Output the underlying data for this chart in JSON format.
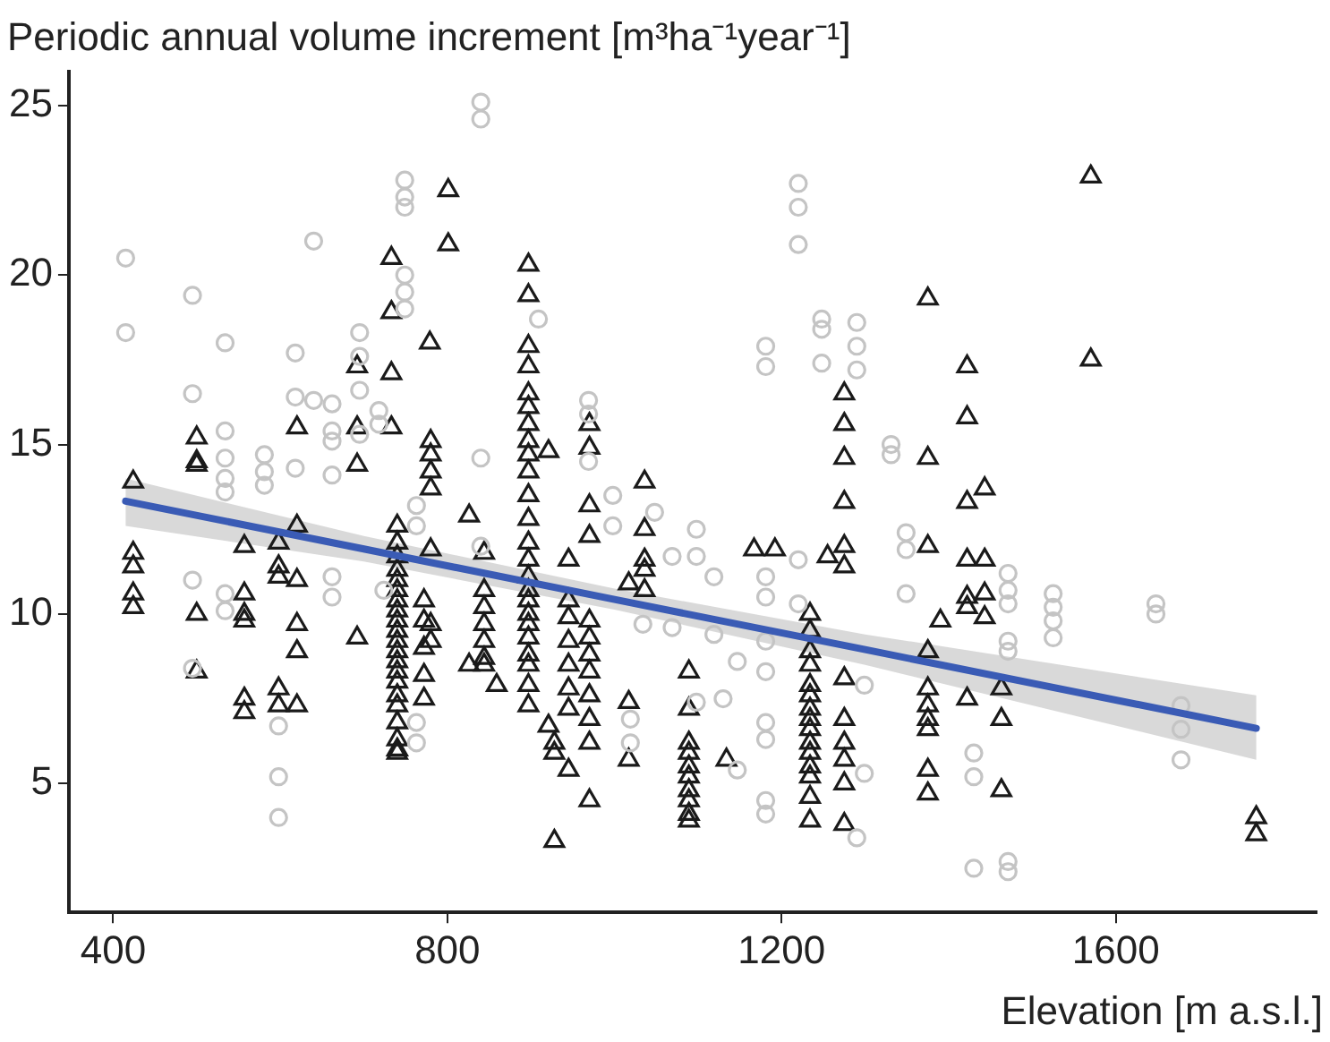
{
  "chart_data": {
    "type": "scatter",
    "ylabel": "Periodic annual volume increment [m³ha⁻¹year⁻¹]",
    "xlabel": "Elevation [m a.s.l.]",
    "xlim": [
      347,
      1840
    ],
    "xticks": [
      400,
      800,
      1200,
      1600
    ],
    "ylim": [
      1.2,
      26
    ],
    "yticks": [
      5,
      10,
      15,
      20,
      25
    ],
    "grid": false,
    "legend": false,
    "series": [
      {
        "color": "#c4c4c4",
        "marker": "circle",
        "x": [
          415,
          415,
          495,
          495,
          495,
          495,
          534,
          534,
          534,
          534,
          534,
          534,
          534,
          581,
          581,
          581,
          598,
          598,
          598,
          618,
          618,
          618,
          640,
          640,
          662,
          662,
          662,
          662,
          662,
          662,
          695,
          695,
          695,
          695,
          718,
          718,
          749,
          749,
          749,
          749,
          749,
          749,
          763,
          763,
          763,
          763,
          840,
          840,
          840,
          840,
          724,
          909,
          969,
          969,
          969,
          998,
          998,
          1048,
          1019,
          1019,
          1034,
          1069,
          1069,
          1098,
          1098,
          1098,
          1119,
          1119,
          1130,
          1147,
          1147,
          1181,
          1181,
          1181,
          1181,
          1181,
          1181,
          1181,
          1181,
          1181,
          1181,
          1220,
          1220,
          1220,
          1220,
          1220,
          1248,
          1248,
          1248,
          1290,
          1290,
          1290,
          1290,
          1299,
          1299,
          1331,
          1331,
          1349,
          1349,
          1349,
          1430,
          1430,
          1430,
          1471,
          1471,
          1471,
          1471,
          1471,
          1471,
          1471,
          1525,
          1525,
          1525,
          1525,
          1648,
          1648,
          1678,
          1678,
          1678
        ],
        "values": [
          20.5,
          18.3,
          16.5,
          19.4,
          11.0,
          8.4,
          18.0,
          15.4,
          14.6,
          14.0,
          13.6,
          10.6,
          10.1,
          14.7,
          14.2,
          13.8,
          6.7,
          5.2,
          4.0,
          17.7,
          16.4,
          14.3,
          21.0,
          16.3,
          16.2,
          15.4,
          15.1,
          14.1,
          11.1,
          10.5,
          18.3,
          17.6,
          16.6,
          15.3,
          16.0,
          15.6,
          22.8,
          22.3,
          22.0,
          20.0,
          19.5,
          19.0,
          13.2,
          12.6,
          6.8,
          6.2,
          25.1,
          24.6,
          14.6,
          12.0,
          10.7,
          18.7,
          16.3,
          15.9,
          14.5,
          13.5,
          12.6,
          13.0,
          6.9,
          6.2,
          9.7,
          11.7,
          9.6,
          12.5,
          11.7,
          7.4,
          11.1,
          9.4,
          7.5,
          8.6,
          5.4,
          17.9,
          17.3,
          11.1,
          10.5,
          9.2,
          8.3,
          6.8,
          6.3,
          4.5,
          4.1,
          22.7,
          22.0,
          20.9,
          11.6,
          10.3,
          18.7,
          18.4,
          17.4,
          18.6,
          17.9,
          17.2,
          3.4,
          7.9,
          5.3,
          15.0,
          14.7,
          12.4,
          11.9,
          10.6,
          5.9,
          5.2,
          2.5,
          11.2,
          10.7,
          10.3,
          9.2,
          8.9,
          2.7,
          2.4,
          10.6,
          10.2,
          9.8,
          9.3,
          10.3,
          10.0,
          7.3,
          6.6,
          5.7
        ]
      },
      {
        "color": "#1a1a1a",
        "marker": "triangle",
        "x": [
          424,
          424,
          424,
          424,
          424,
          500,
          500,
          500,
          500,
          500,
          557,
          557,
          557,
          557,
          557,
          557,
          598,
          598,
          598,
          598,
          598,
          620,
          620,
          620,
          620,
          620,
          620,
          692,
          692,
          692,
          692,
          733,
          733,
          733,
          733,
          740,
          740,
          740,
          740,
          740,
          740,
          740,
          740,
          740,
          740,
          740,
          740,
          740,
          740,
          740,
          740,
          740,
          740,
          740,
          740,
          740,
          772,
          772,
          772,
          772,
          772,
          780,
          780,
          780,
          780,
          780,
          780,
          780,
          801,
          801,
          779,
          826,
          826,
          844,
          844,
          844,
          844,
          844,
          844,
          844,
          859,
          897,
          897,
          897,
          897,
          897,
          897,
          897,
          897,
          897,
          897,
          897,
          897,
          897,
          897,
          897,
          897,
          897,
          897,
          897,
          897,
          897,
          897,
          897,
          897,
          921,
          921,
          928,
          928,
          928,
          945,
          945,
          945,
          945,
          945,
          945,
          945,
          945,
          970,
          970,
          970,
          970,
          970,
          970,
          970,
          970,
          970,
          970,
          970,
          970,
          1017,
          1017,
          1017,
          1036,
          1036,
          1036,
          1036,
          1036,
          1089,
          1089,
          1089,
          1089,
          1089,
          1089,
          1089,
          1089,
          1089,
          1089,
          1134,
          1167,
          1192,
          1234,
          1234,
          1234,
          1234,
          1234,
          1234,
          1234,
          1234,
          1234,
          1234,
          1234,
          1234,
          1234,
          1234,
          1234,
          1255,
          1275,
          1275,
          1275,
          1275,
          1275,
          1275,
          1275,
          1275,
          1275,
          1275,
          1275,
          1275,
          1375,
          1375,
          1375,
          1375,
          1375,
          1375,
          1375,
          1375,
          1375,
          1375,
          1390,
          1422,
          1422,
          1422,
          1422,
          1422,
          1422,
          1422,
          1443,
          1443,
          1443,
          1443,
          1463,
          1463,
          1463,
          1570,
          1570,
          1768,
          1768
        ],
        "values": [
          13.9,
          11.8,
          11.4,
          10.6,
          10.2,
          15.2,
          14.5,
          14.4,
          10.0,
          8.3,
          12.0,
          10.6,
          10.0,
          9.8,
          7.5,
          7.1,
          12.1,
          11.4,
          11.1,
          7.8,
          7.3,
          15.5,
          12.6,
          11.0,
          9.7,
          8.9,
          7.3,
          17.3,
          15.5,
          14.4,
          9.3,
          20.5,
          18.9,
          17.1,
          15.5,
          12.6,
          12.1,
          11.7,
          11.3,
          11.0,
          10.7,
          10.4,
          10.1,
          9.8,
          9.5,
          9.2,
          8.9,
          8.6,
          8.3,
          8.0,
          7.6,
          7.3,
          6.8,
          6.3,
          6.0,
          5.9,
          10.4,
          9.8,
          9.0,
          8.2,
          7.5,
          15.1,
          14.7,
          14.2,
          13.7,
          11.9,
          9.7,
          9.2,
          22.5,
          20.9,
          18.0,
          12.9,
          8.5,
          11.8,
          10.7,
          10.2,
          9.7,
          9.2,
          8.7,
          8.5,
          7.9,
          20.3,
          19.4,
          17.9,
          17.3,
          16.5,
          16.1,
          15.6,
          15.1,
          14.7,
          14.2,
          13.5,
          12.8,
          12.1,
          11.6,
          11.1,
          10.7,
          10.4,
          10.0,
          9.7,
          9.3,
          8.8,
          8.5,
          7.9,
          7.3,
          14.8,
          6.7,
          6.2,
          5.9,
          3.3,
          11.6,
          10.4,
          9.9,
          9.2,
          8.5,
          7.8,
          7.2,
          5.4,
          15.6,
          14.9,
          13.2,
          12.3,
          9.8,
          9.3,
          8.8,
          8.3,
          7.6,
          6.9,
          6.2,
          4.5,
          10.9,
          7.4,
          5.7,
          13.9,
          12.5,
          11.6,
          11.3,
          10.7,
          8.3,
          7.2,
          6.2,
          5.9,
          5.5,
          5.2,
          4.8,
          4.5,
          4.1,
          3.9,
          5.7,
          11.9,
          11.9,
          10.0,
          9.5,
          8.9,
          8.5,
          7.9,
          7.6,
          7.2,
          6.9,
          6.6,
          6.2,
          5.9,
          5.5,
          5.2,
          4.6,
          3.9,
          11.7,
          16.5,
          15.6,
          14.6,
          13.3,
          12.0,
          11.4,
          8.1,
          6.9,
          6.2,
          5.7,
          5.0,
          3.8,
          19.3,
          14.6,
          12.0,
          8.9,
          7.8,
          7.3,
          6.9,
          6.6,
          5.4,
          4.7,
          9.8,
          17.3,
          15.8,
          13.3,
          11.6,
          10.5,
          10.2,
          7.5,
          13.7,
          11.6,
          10.6,
          9.9,
          7.8,
          6.9,
          4.8,
          22.9,
          17.5,
          4.0,
          3.5
        ]
      },
      {
        "type": "line",
        "color": "#3a5bb5",
        "marker": "none",
        "x": [
          415,
          700,
          1000,
          1300,
          1768
        ],
        "values": [
          13.33,
          11.92,
          10.43,
          8.95,
          6.63
        ],
        "lower": [
          12.6,
          11.55,
          10.13,
          8.5,
          5.7
        ],
        "upper": [
          14.0,
          12.3,
          10.75,
          9.4,
          7.6
        ]
      }
    ]
  }
}
